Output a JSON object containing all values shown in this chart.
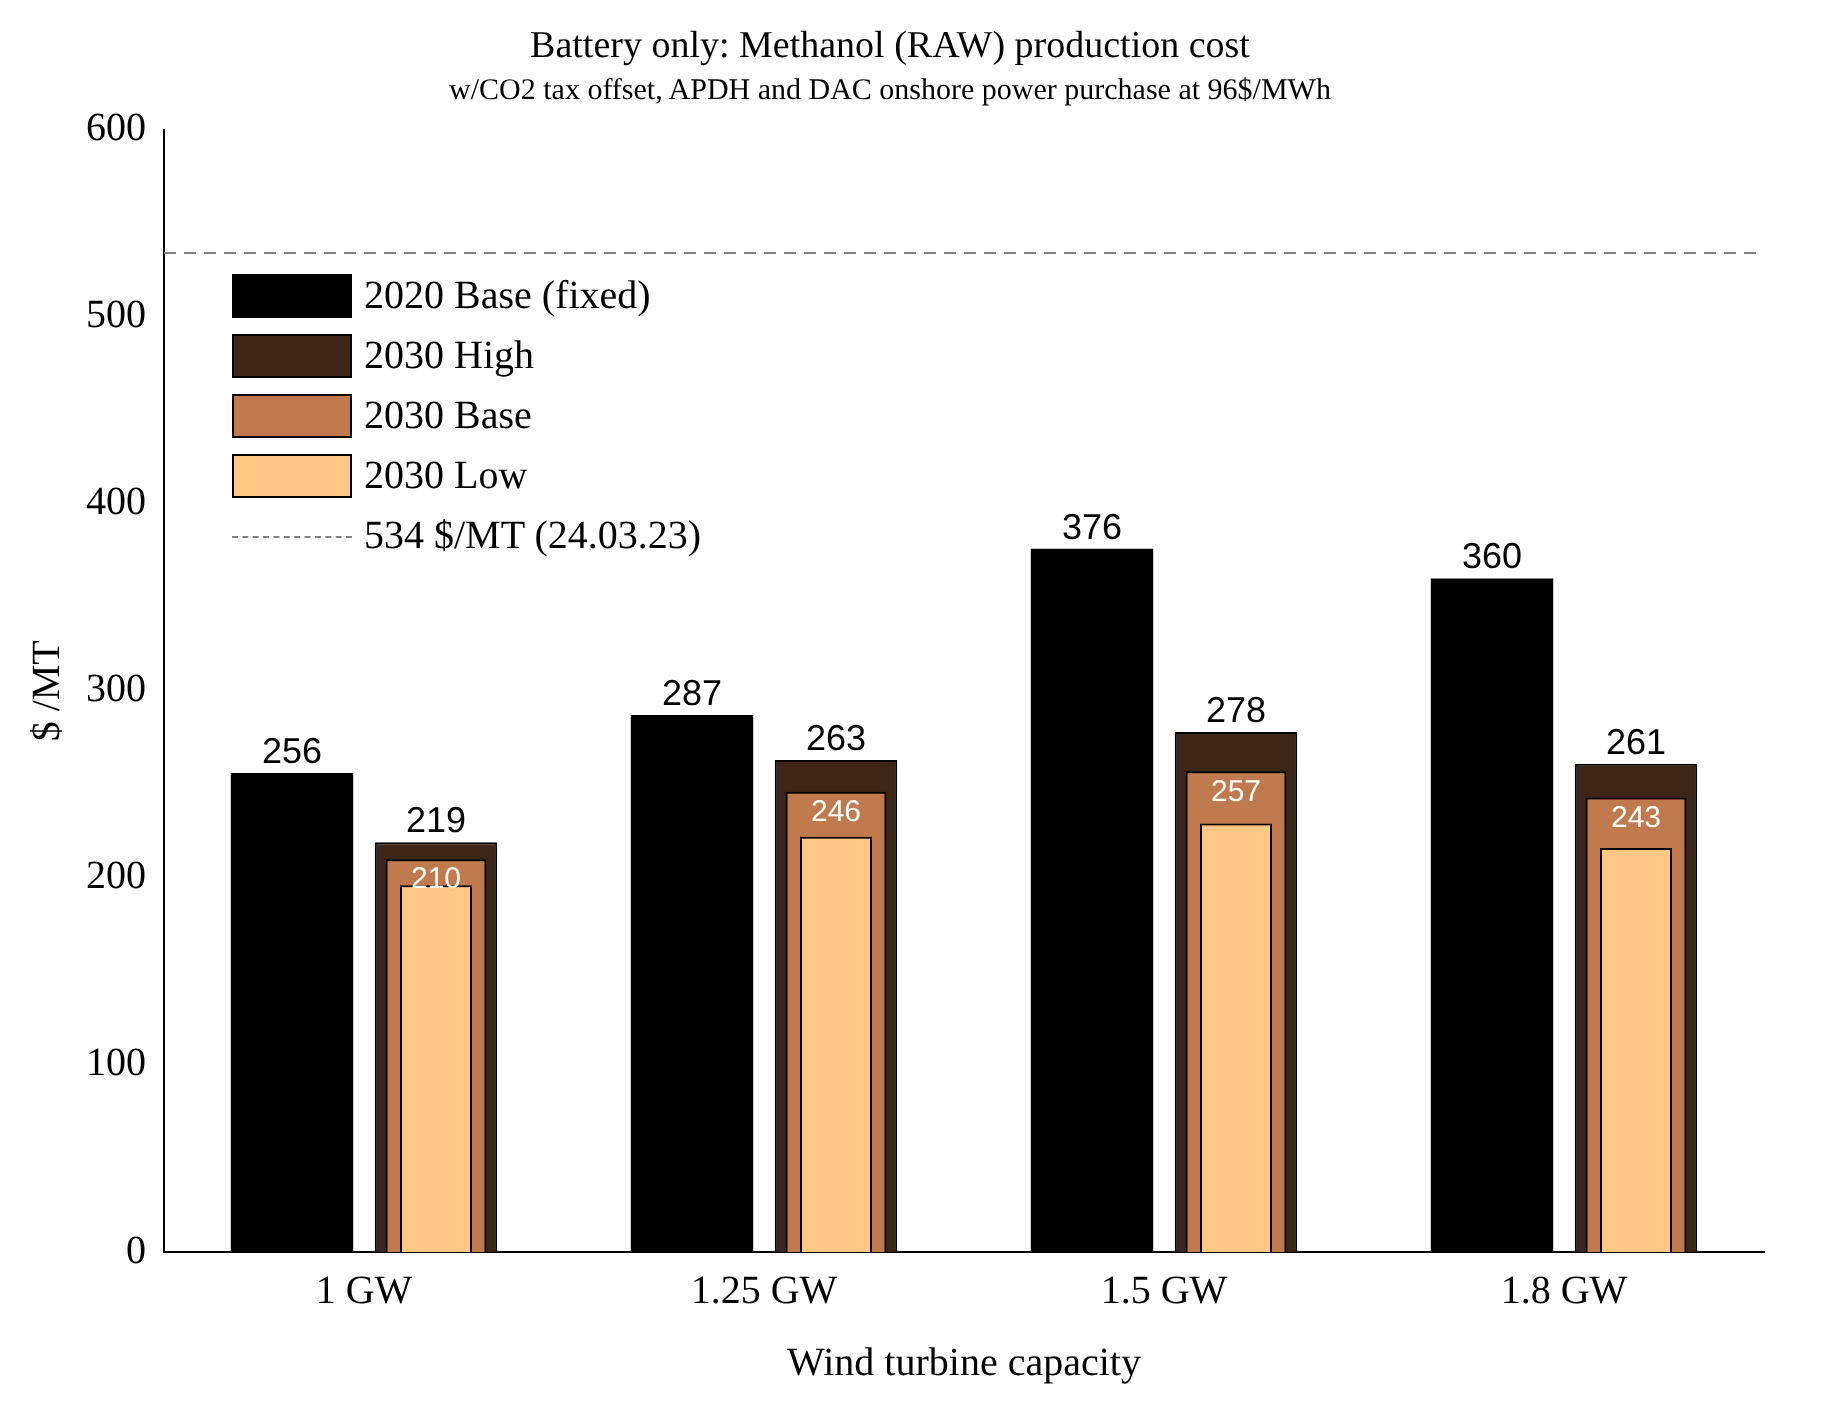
{
  "chart_data": {
    "type": "bar",
    "title": "Battery only: Methanol (RAW) production cost",
    "subtitle": "w/CO2 tax offset, APDH and DAC onshore power purchase at 96$/MWh",
    "xlabel": "Wind turbine capacity",
    "ylabel": "$ /MT",
    "categories": [
      "1 GW",
      "1.25 GW",
      "1.5 GW",
      "1.8 GW"
    ],
    "ylim": [
      0,
      600
    ],
    "yticks": [
      0,
      100,
      200,
      300,
      400,
      500,
      600
    ],
    "grid": false,
    "legend": "top left",
    "series": [
      {
        "name": "2020 Base (fixed)",
        "color": "#000000",
        "values": [
          256,
          287,
          376,
          360
        ],
        "value_labels": [
          "256",
          "287",
          "376",
          "360"
        ]
      },
      {
        "name": "2030 High",
        "color": "#3d2618",
        "values": [
          219,
          263,
          278,
          261
        ],
        "value_labels": [
          "219",
          "263",
          "278",
          "261"
        ]
      },
      {
        "name": "2030 Base",
        "color": "#c07a4e",
        "values": [
          210,
          246,
          257,
          243
        ],
        "value_labels": [
          "210",
          "246",
          "257",
          "243"
        ]
      },
      {
        "name": "2030 Low",
        "color": "#ffc784",
        "values": [
          196,
          222,
          229,
          216
        ]
      }
    ],
    "ref_lines": [
      {
        "axis": "y",
        "value": 534,
        "label": "534 $/MT (24.03.23)",
        "color": "#808080",
        "line_style": "dashed"
      }
    ]
  }
}
